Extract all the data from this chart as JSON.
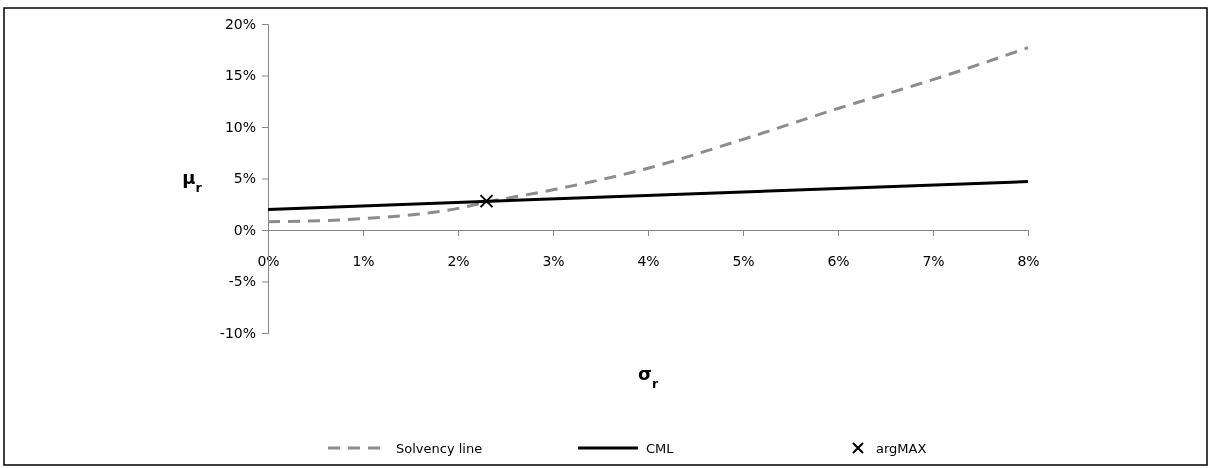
{
  "chart_data": {
    "type": "line",
    "xlabel": "σ$_{r}$",
    "ylabel": "μ$_{r}$",
    "series": [
      {
        "name": "Solvency line",
        "color": "#8c8c8c",
        "line_style": "dashed",
        "x": [
          0,
          1,
          2,
          2.3,
          3,
          4,
          5,
          6,
          7,
          8
        ],
        "values": [
          0.8,
          1.1,
          2.1,
          2.7,
          3.9,
          6.0,
          8.8,
          11.8,
          14.6,
          17.7
        ]
      },
      {
        "name": "CML",
        "color": "#000000",
        "line_style": "solid",
        "x": [
          0,
          8
        ],
        "values": [
          2.0,
          4.7
        ]
      },
      {
        "name": "argMAX",
        "type": "scatter",
        "color": "#000000",
        "marker": "cross",
        "x": [
          2.3
        ],
        "values": [
          2.8
        ]
      }
    ],
    "xlim": [
      0,
      8
    ],
    "ylim": [
      -10,
      20
    ],
    "xticks": [
      {
        "value": 0,
        "label": "0%"
      },
      {
        "value": 1,
        "label": "1%"
      },
      {
        "value": 2,
        "label": "2%"
      },
      {
        "value": 3,
        "label": "3%"
      },
      {
        "value": 4,
        "label": "4%"
      },
      {
        "value": 5,
        "label": "5%"
      },
      {
        "value": 6,
        "label": "6%"
      },
      {
        "value": 7,
        "label": "7%"
      },
      {
        "value": 8,
        "label": "8%"
      }
    ],
    "yticks": [
      {
        "value": -10,
        "label": "-10%"
      },
      {
        "value": -5,
        "label": "-5%"
      },
      {
        "value": 0,
        "label": "0%"
      },
      {
        "value": 5,
        "label": "5%"
      },
      {
        "value": 10,
        "label": "10%"
      },
      {
        "value": 15,
        "label": "15%"
      },
      {
        "value": 20,
        "label": "20%"
      }
    ],
    "grid": false,
    "legend": "bottom"
  }
}
